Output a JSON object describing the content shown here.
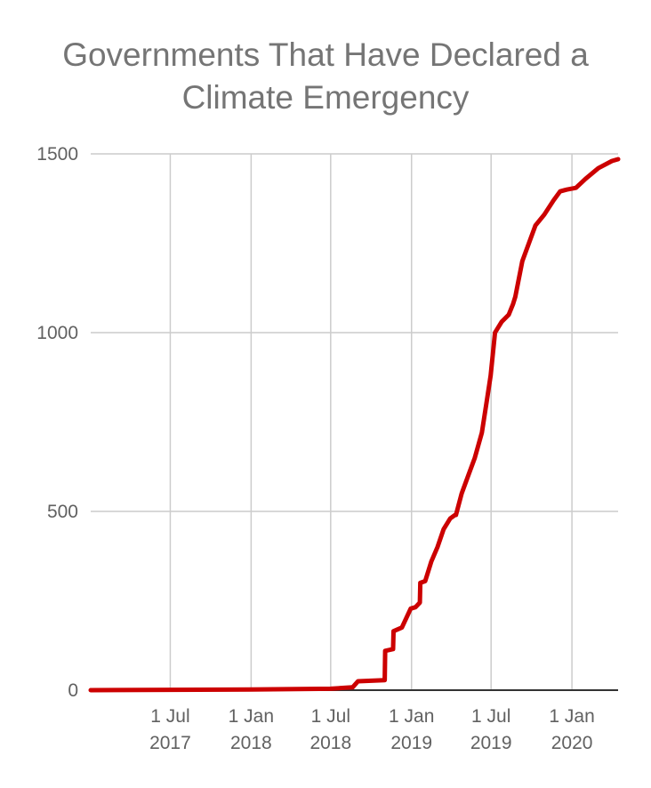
{
  "chart_data": {
    "type": "line",
    "title_lines": [
      "Governments That Have Declared a",
      "Climate Emergency"
    ],
    "xlabel": "",
    "ylabel": "",
    "x_range": [
      "2017-01-01",
      "2020-04-15"
    ],
    "ylim": [
      0,
      1500
    ],
    "y_ticks": [
      0,
      500,
      1000,
      1500
    ],
    "x_ticks": [
      {
        "date": "2017-07-01",
        "line1": "1 Jul",
        "line2": "2017"
      },
      {
        "date": "2018-01-01",
        "line1": "1 Jan",
        "line2": "2018"
      },
      {
        "date": "2018-07-01",
        "line1": "1 Jul",
        "line2": "2018"
      },
      {
        "date": "2019-01-01",
        "line1": "1 Jan",
        "line2": "2019"
      },
      {
        "date": "2019-07-01",
        "line1": "1 Jul",
        "line2": "2019"
      },
      {
        "date": "2020-01-01",
        "line1": "1 Jan",
        "line2": "2020"
      }
    ],
    "grid": "vertical and horizontal",
    "legend": "none",
    "color": "#cc0000",
    "series": [
      {
        "x": [
          "2017-01-01",
          "2017-07-01",
          "2018-01-01",
          "2018-07-01",
          "2018-08-20",
          "2018-09-01",
          "2018-11-01",
          "2018-11-02",
          "2018-11-20",
          "2018-11-21",
          "2018-12-10",
          "2018-12-30",
          "2019-01-10",
          "2019-01-20",
          "2019-01-21",
          "2019-02-01",
          "2019-02-15",
          "2019-03-01",
          "2019-03-15",
          "2019-03-30",
          "2019-04-10",
          "2019-04-12",
          "2019-04-25",
          "2019-05-10",
          "2019-05-25",
          "2019-06-10",
          "2019-06-20",
          "2019-06-30",
          "2019-07-10",
          "2019-07-25",
          "2019-08-10",
          "2019-08-20",
          "2019-08-25",
          "2019-09-10",
          "2019-09-25",
          "2019-10-10",
          "2019-10-30",
          "2019-11-20",
          "2019-12-05",
          "2019-12-20",
          "2020-01-10",
          "2020-02-01",
          "2020-03-01",
          "2020-04-01",
          "2020-04-15"
        ],
        "y": [
          0,
          1,
          2,
          4,
          8,
          25,
          28,
          110,
          115,
          165,
          175,
          228,
          232,
          245,
          300,
          305,
          360,
          400,
          450,
          480,
          490,
          490,
          550,
          600,
          650,
          720,
          800,
          880,
          1000,
          1030,
          1050,
          1080,
          1100,
          1200,
          1250,
          1300,
          1330,
          1370,
          1395,
          1400,
          1405,
          1430,
          1460,
          1480,
          1485
        ]
      }
    ]
  }
}
